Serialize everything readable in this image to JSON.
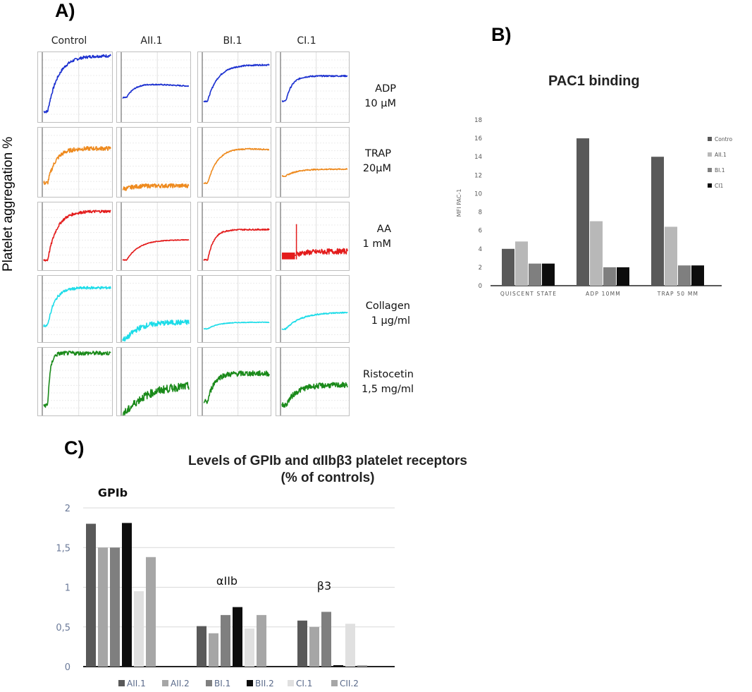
{
  "panel_labels": {
    "a": "A)",
    "b": "B)",
    "c": "C)"
  },
  "panel_a": {
    "y_label": "Platelet aggregation %",
    "columns": [
      "Control",
      "AII.1",
      "BI.1",
      "CI.1"
    ],
    "rows": [
      {
        "line1": "ADP",
        "line2": "10 µM",
        "color": "#1a2fd0",
        "traces": [
          {
            "kind": "rise",
            "base": 0.15,
            "plateau": 0.95,
            "k": 6,
            "noise": 0.02
          },
          {
            "kind": "rise",
            "base": 0.35,
            "plateau": 0.55,
            "k": 8,
            "noise": 0.008,
            "droop": 0.05
          },
          {
            "kind": "rise",
            "base": 0.3,
            "plateau": 0.82,
            "k": 6,
            "noise": 0.01
          },
          {
            "kind": "rise",
            "base": 0.3,
            "plateau": 0.66,
            "k": 10,
            "noise": 0.01
          }
        ]
      },
      {
        "line1": "TRAP",
        "line2": "20µM",
        "color": "#ee8a1e",
        "traces": [
          {
            "kind": "rise",
            "base": 0.2,
            "plateau": 0.7,
            "k": 8,
            "noise": 0.03
          },
          {
            "kind": "rise",
            "base": 0.12,
            "plateau": 0.16,
            "k": 8,
            "noise": 0.03
          },
          {
            "kind": "rise",
            "base": 0.2,
            "plateau": 0.72,
            "k": 6,
            "noise": 0.008,
            "droop": 0.05
          },
          {
            "kind": "rise",
            "base": 0.3,
            "plateau": 0.4,
            "k": 6,
            "noise": 0.008
          }
        ]
      },
      {
        "line1": "AA",
        "line2": "1 mM",
        "color": "#e31c1c",
        "traces": [
          {
            "kind": "rise",
            "base": 0.15,
            "plateau": 0.87,
            "k": 7,
            "noise": 0.02
          },
          {
            "kind": "rise",
            "base": 0.15,
            "plateau": 0.45,
            "k": 5,
            "noise": 0.005
          },
          {
            "kind": "rise",
            "base": 0.15,
            "plateau": 0.6,
            "k": 10,
            "noise": 0.01
          },
          {
            "kind": "spike",
            "base": 0.2,
            "plateau": 0.28,
            "k": 4,
            "noise": 0.04
          }
        ]
      },
      {
        "line1": "Collagen",
        "line2": "1 µg/ml",
        "color": "#1cdce8",
        "traces": [
          {
            "kind": "rise",
            "base": 0.25,
            "plateau": 0.82,
            "k": 9,
            "noise": 0.02
          },
          {
            "kind": "rise",
            "base": 0.05,
            "plateau": 0.3,
            "k": 5,
            "noise": 0.04
          },
          {
            "kind": "rise",
            "base": 0.2,
            "plateau": 0.3,
            "k": 6,
            "noise": 0.005
          },
          {
            "kind": "rise",
            "base": 0.2,
            "plateau": 0.45,
            "k": 4,
            "noise": 0.01
          }
        ]
      },
      {
        "line1": "Ristocetin",
        "line2": "1,5 mg/ml",
        "color": "#1a8a1a",
        "traces": [
          {
            "kind": "rise",
            "base": 0.15,
            "plateau": 0.92,
            "k": 25,
            "noise": 0.03
          },
          {
            "kind": "rise",
            "base": 0.05,
            "plateau": 0.45,
            "k": 3,
            "noise": 0.06
          },
          {
            "kind": "rise",
            "base": 0.2,
            "plateau": 0.62,
            "k": 10,
            "noise": 0.04
          },
          {
            "kind": "rise",
            "base": 0.15,
            "plateau": 0.45,
            "k": 6,
            "noise": 0.04
          }
        ]
      }
    ]
  },
  "chart_data": [
    {
      "type": "bar",
      "title": "PAC1 binding",
      "ylabel": "MFI PAC-1",
      "xlabel": "",
      "categories": [
        "QUISCENT STATE",
        "ADP 10MM",
        "TRAP 50 MM"
      ],
      "ylim": [
        0,
        18
      ],
      "yticks": [
        0,
        2,
        4,
        6,
        8,
        10,
        12,
        14,
        16,
        18
      ],
      "grid": false,
      "legend": "right",
      "series": [
        {
          "name": "Contro",
          "color": "#595959",
          "values": [
            4,
            16,
            14
          ]
        },
        {
          "name": "AII.1",
          "color": "#b8b8b8",
          "values": [
            4.8,
            7,
            6.4
          ]
        },
        {
          "name": "BI.1",
          "color": "#7f7f7f",
          "values": [
            2.4,
            2,
            2.2
          ]
        },
        {
          "name": "CI1",
          "color": "#0d0d0d",
          "values": [
            2.4,
            2,
            2.2
          ]
        }
      ]
    },
    {
      "type": "bar",
      "title": "Levels of  GPIb and αIIbβ3 platelet receptors",
      "subtitle": "(% of controls)",
      "ylabel": "",
      "xlabel": "",
      "categories": [
        "GPIb",
        "αIIb",
        "β3"
      ],
      "ylim": [
        0,
        2
      ],
      "yticks": [
        {
          "v": 0,
          "t": "0"
        },
        {
          "v": 0.5,
          "t": "0,5"
        },
        {
          "v": 1,
          "t": "1"
        },
        {
          "v": 1.5,
          "t": "1,5"
        },
        {
          "v": 2,
          "t": "2"
        }
      ],
      "grid": true,
      "legend": "bottom",
      "series": [
        {
          "name": "AII.1",
          "color": "#595959",
          "values": [
            1.8,
            0.51,
            0.58
          ]
        },
        {
          "name": "AII.2",
          "color": "#a6a6a6",
          "values": [
            1.5,
            0.42,
            0.5
          ]
        },
        {
          "name": "BI.1",
          "color": "#7f7f7f",
          "values": [
            1.5,
            0.65,
            0.69
          ]
        },
        {
          "name": "BII.2",
          "color": "#0d0d0d",
          "values": [
            1.81,
            0.75,
            0
          ]
        },
        {
          "name": "CI.1",
          "color": "#e0e0e0",
          "values": [
            0.95,
            0.48,
            0.54
          ]
        },
        {
          "name": "CII.2",
          "color": "#a6a6a6",
          "values": [
            1.38,
            0.65,
            0
          ]
        }
      ]
    }
  ]
}
